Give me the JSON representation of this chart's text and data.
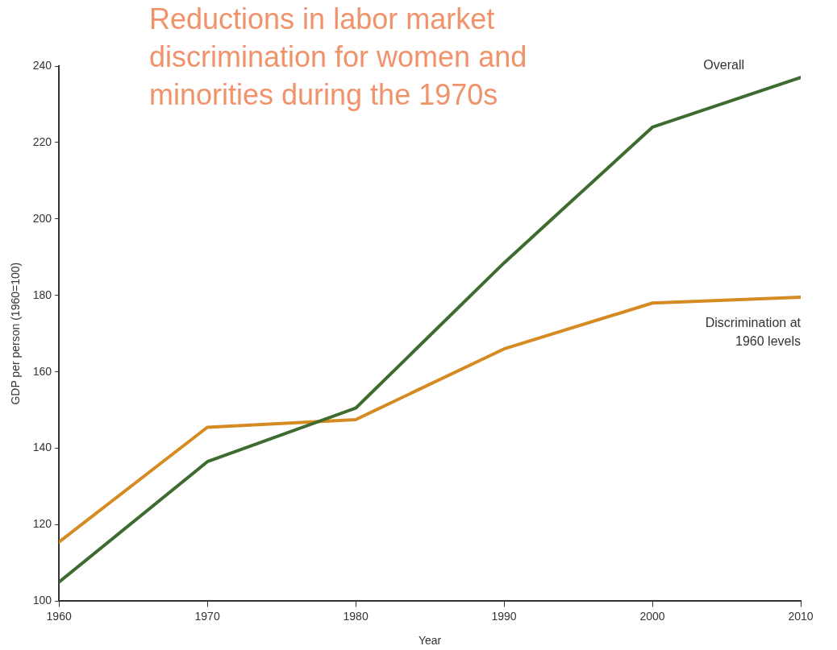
{
  "chart_data": {
    "type": "line",
    "title": "Reductions in labor market discrimination for women and minorities during the 1970s",
    "xlabel": "Year",
    "ylabel": "GDP per person (1960=100)",
    "x": [
      1960,
      1970,
      1980,
      1990,
      2000,
      2010
    ],
    "series": [
      {
        "name": "Overall",
        "color": "#3e6b2f",
        "values": [
          105,
          136.5,
          150.5,
          188.5,
          224,
          237
        ]
      },
      {
        "name": "Discrimination at 1960 levels",
        "color": "#d68a22",
        "values": [
          115.5,
          145.5,
          147.5,
          166,
          178,
          179.5
        ]
      }
    ],
    "xlim": [
      1960,
      2010
    ],
    "xticks": [
      1960,
      1970,
      1980,
      1990,
      2000,
      2010
    ],
    "ylim": [
      100,
      240
    ],
    "yticks": [
      100,
      120,
      140,
      160,
      180,
      200,
      220,
      240
    ],
    "grid": false,
    "legend": false,
    "marker": "none",
    "line_style": "solid"
  }
}
